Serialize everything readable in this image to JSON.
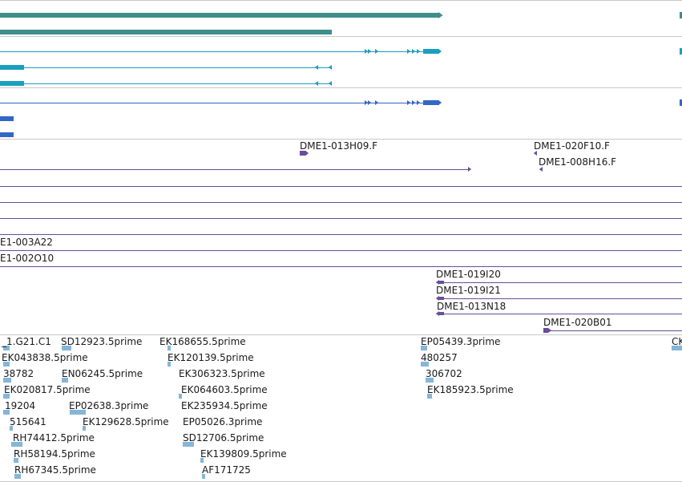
{
  "colors": {
    "gene_teal": "#3e8e8a",
    "mrna_cyan": "#1a9fbd",
    "protein_blue": "#3367c4",
    "clone_purple": "#6a4c9c",
    "est_lightblue": "#84b6d8",
    "divider": "#c8c8c8"
  },
  "icons": {
    "feature_arrow": "triangle-arrow-icon",
    "exon_block": "exon-block-icon"
  },
  "clone_track": {
    "labels": [
      "DME1-013H09.F",
      "DME1-020F10.F",
      "DME1-008H16.F",
      "E1-003A22",
      "E1-002O10",
      "DME1-019I20",
      "DME1-019I21",
      "DME1-013N18",
      "DME1-020B01"
    ]
  },
  "est_track": {
    "labels": [
      "_1.G21.C1",
      "SD12923.5prime",
      "EK168655.5prime",
      "EK043838.5prime",
      "EK120139.5prime",
      "38782",
      "EN06245.5prime",
      "EK306323.5prime",
      "EK020817.5prime",
      "EK064603.5prime",
      "19204",
      "EP02638.3prime",
      "EK235934.5prime",
      "515641",
      "EK129628.5prime",
      "EP05026.3prime",
      "RH74412.5prime",
      "SD12706.5prime",
      "RH58194.5prime",
      "EK139809.5prime",
      "RH67345.5prime",
      "AF171725",
      "EP05439.3prime",
      "480257",
      "306702",
      "EK185923.5prime",
      "CK"
    ]
  }
}
